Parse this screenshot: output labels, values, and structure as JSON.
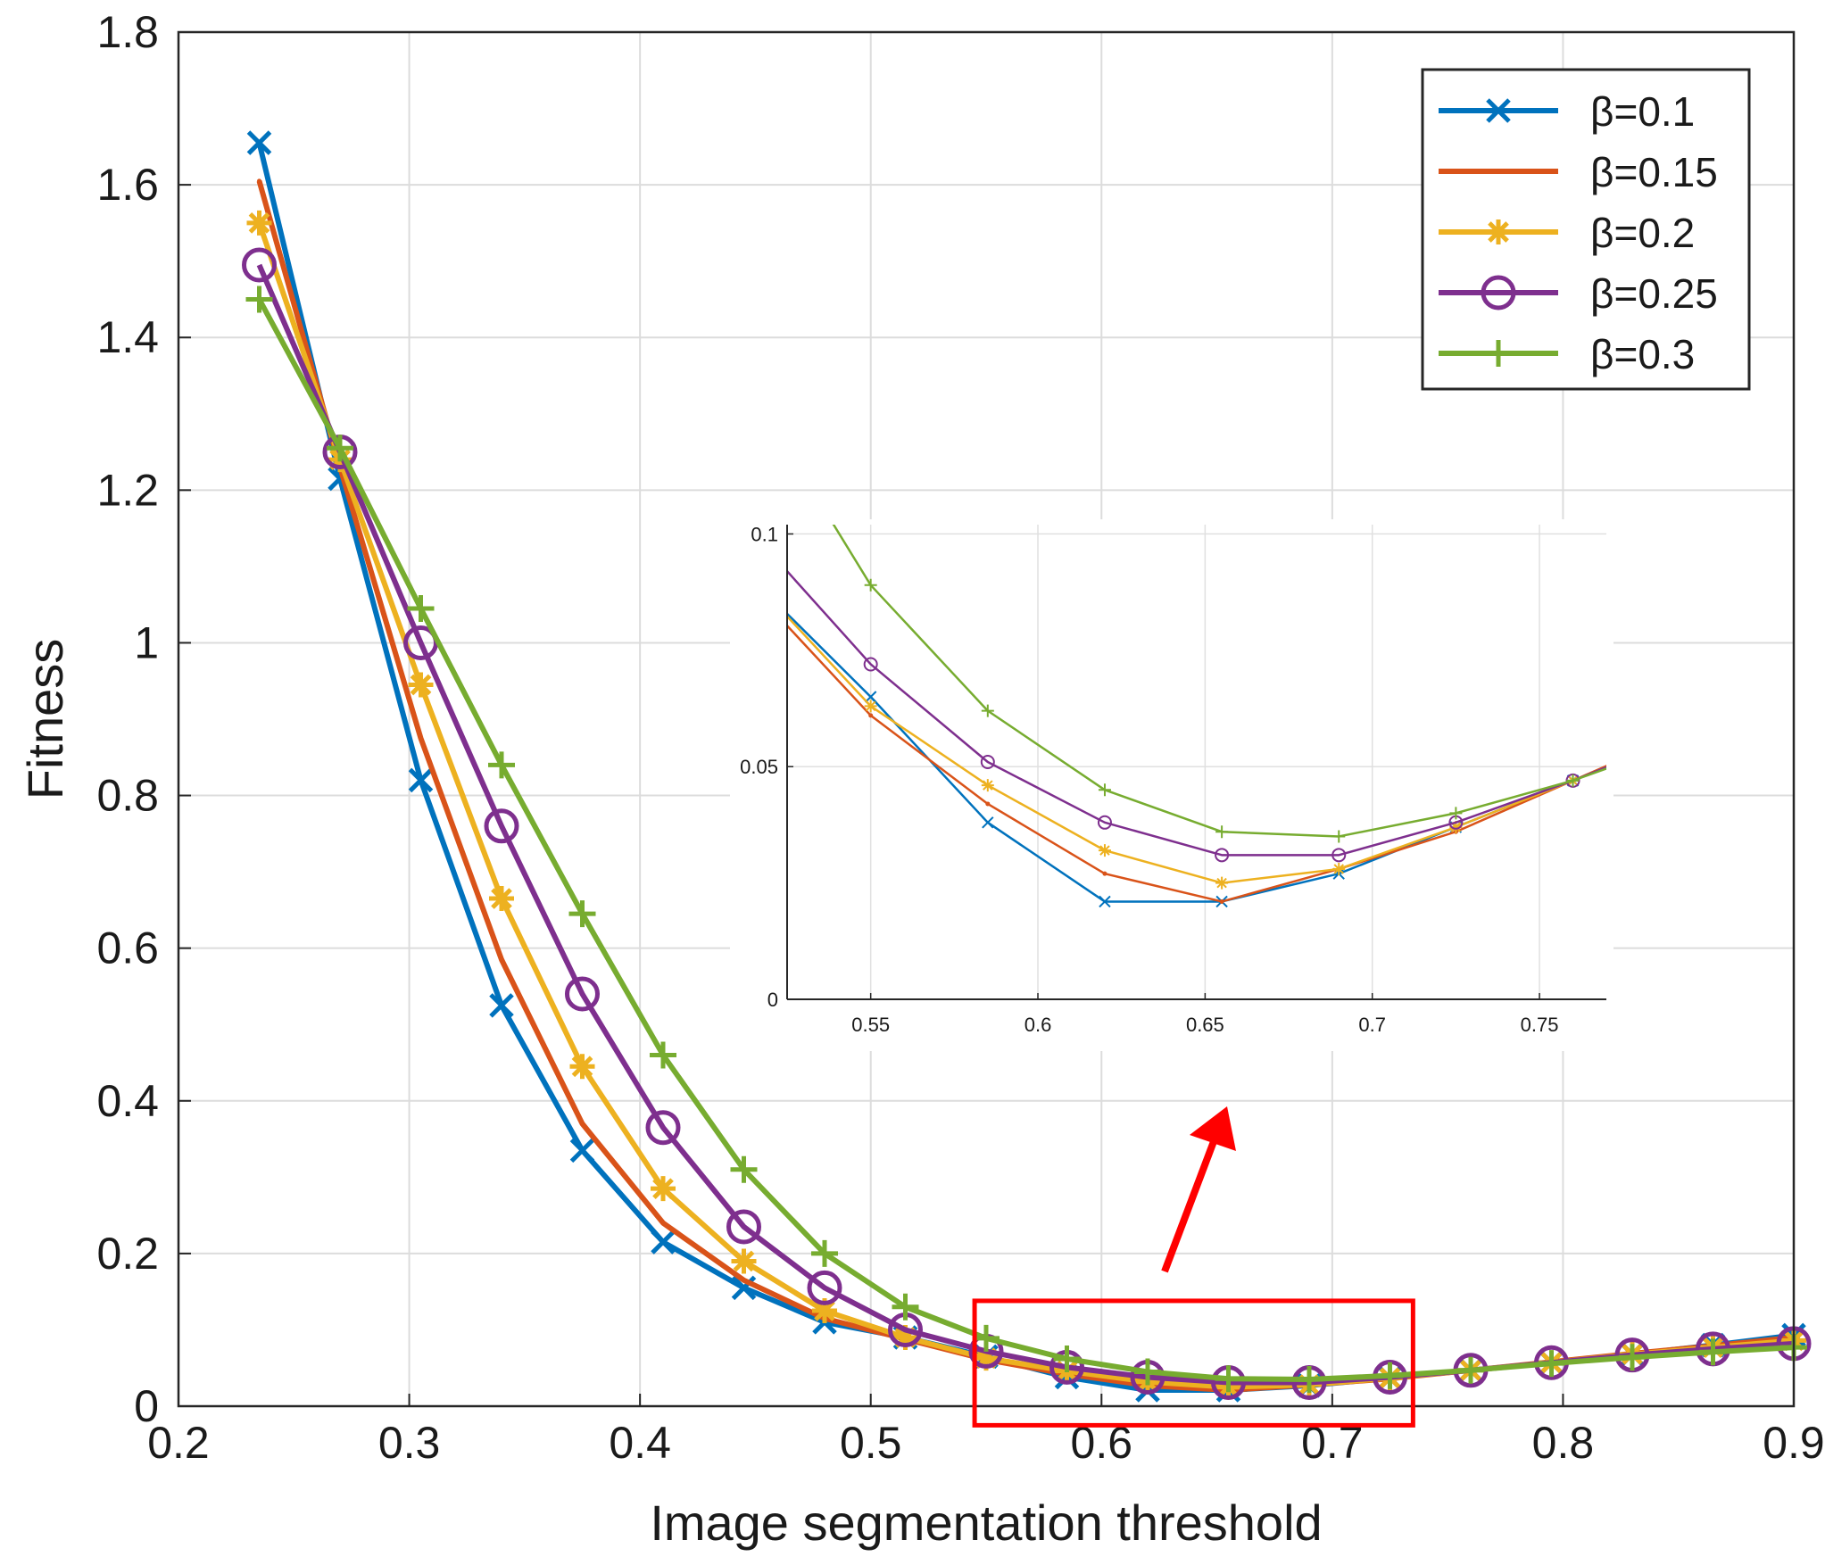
{
  "chart_data": [
    {
      "type": "line",
      "title": "",
      "xlabel": "Image segmentation threshold",
      "ylabel": "Fitness",
      "xlim": [
        0.2,
        0.9
      ],
      "ylim": [
        0,
        1.8
      ],
      "xticks": [
        "0.2",
        "0.3",
        "0.4",
        "0.5",
        "0.6",
        "0.7",
        "0.8",
        "0.9"
      ],
      "yticks": [
        "0",
        "0.2",
        "0.4",
        "0.6",
        "0.8",
        "1",
        "1.2",
        "1.4",
        "1.6",
        "1.8"
      ],
      "grid": true,
      "legend_position": "top-right",
      "x": [
        0.235,
        0.27,
        0.305,
        0.34,
        0.375,
        0.41,
        0.445,
        0.48,
        0.515,
        0.55,
        0.585,
        0.62,
        0.655,
        0.69,
        0.725,
        0.76,
        0.795,
        0.83,
        0.865,
        0.9
      ],
      "series": [
        {
          "name": "β=0.1",
          "color": "#0072BD",
          "marker": "x",
          "values": [
            1.655,
            1.215,
            0.82,
            0.525,
            0.335,
            0.215,
            0.155,
            0.11,
            0.09,
            0.065,
            0.038,
            0.021,
            0.021,
            0.027,
            0.037,
            0.047,
            0.057,
            0.068,
            0.08,
            0.093
          ]
        },
        {
          "name": "β=0.15",
          "color": "#D95319",
          "marker": "dot",
          "values": [
            1.605,
            1.23,
            0.875,
            0.585,
            0.37,
            0.24,
            0.165,
            0.115,
            0.088,
            0.061,
            0.042,
            0.027,
            0.021,
            0.028,
            0.036,
            0.047,
            0.058,
            0.069,
            0.079,
            0.09
          ]
        },
        {
          "name": "β=0.2",
          "color": "#EDB120",
          "marker": "asterisk",
          "values": [
            1.55,
            1.24,
            0.945,
            0.665,
            0.445,
            0.285,
            0.19,
            0.125,
            0.09,
            0.063,
            0.046,
            0.032,
            0.025,
            0.028,
            0.037,
            0.047,
            0.057,
            0.068,
            0.077,
            0.086
          ]
        },
        {
          "name": "β=0.25",
          "color": "#7E2F8E",
          "marker": "circle",
          "values": [
            1.495,
            1.25,
            1.0,
            0.76,
            0.54,
            0.365,
            0.235,
            0.155,
            0.1,
            0.072,
            0.051,
            0.038,
            0.031,
            0.031,
            0.038,
            0.047,
            0.057,
            0.067,
            0.075,
            0.082
          ]
        },
        {
          "name": "β=0.3",
          "color": "#77AC30",
          "marker": "plus",
          "values": [
            1.45,
            1.255,
            1.045,
            0.84,
            0.645,
            0.46,
            0.31,
            0.2,
            0.13,
            0.089,
            0.062,
            0.045,
            0.036,
            0.035,
            0.04,
            0.047,
            0.056,
            0.064,
            0.071,
            0.077
          ]
        }
      ]
    },
    {
      "type": "line",
      "title": "",
      "role": "inset zoom",
      "xlim": [
        0.525,
        0.77
      ],
      "ylim": [
        0,
        0.102
      ],
      "xticks": [
        "0.55",
        "0.6",
        "0.65",
        "0.7",
        "0.75"
      ],
      "yticks": [
        "0",
        "0.05",
        "0.1"
      ],
      "grid": true,
      "same_series_as_main": true
    }
  ],
  "annotations": {
    "zoom_box_color": "#FF0000",
    "zoom_box_x_range": [
      0.545,
      0.735
    ],
    "zoom_box_y_range": [
      -0.025,
      0.138
    ],
    "arrow_color": "#FF0000"
  }
}
